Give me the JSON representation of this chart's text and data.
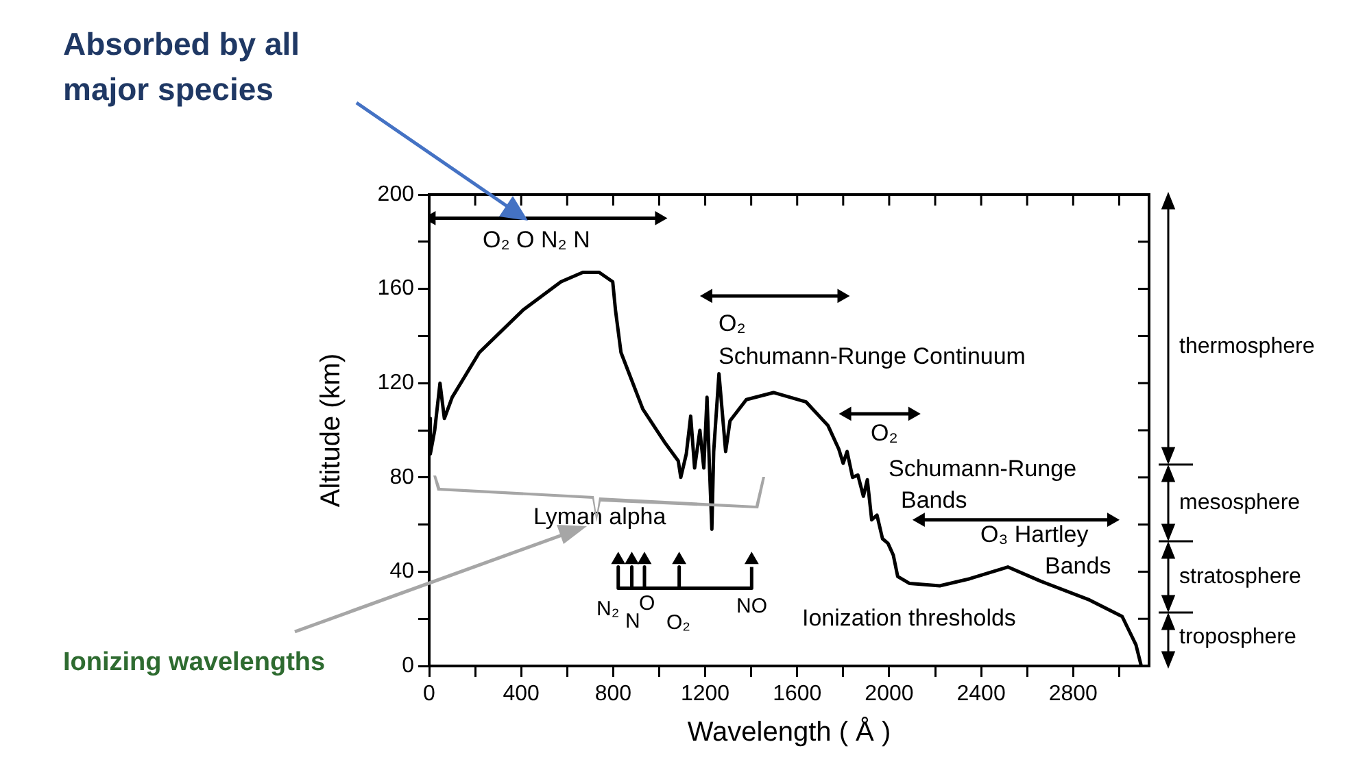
{
  "chart_data": {
    "type": "line",
    "xlabel": "Wavelength ( Å )",
    "ylabel": "Altitude (km)",
    "xlim": [
      0,
      3130
    ],
    "ylim": [
      0,
      200
    ],
    "xticks": [
      0,
      {
        "value": 200,
        "label": null
      },
      400,
      {
        "value": 600,
        "label": null
      },
      800,
      {
        "value": 1000,
        "label": null
      },
      1200,
      {
        "value": 1400,
        "label": null
      },
      1600,
      {
        "value": 1800,
        "label": null
      },
      2000,
      {
        "value": 2200,
        "label": null
      },
      2400,
      {
        "value": 2600,
        "label": null
      },
      2800,
      {
        "value": 3000,
        "label": null
      }
    ],
    "yticks": [
      0,
      {
        "value": 20,
        "label": null
      },
      40,
      {
        "value": 60,
        "label": null
      },
      80,
      {
        "value": 100,
        "label": null
      },
      120,
      {
        "value": 140,
        "label": null
      },
      160,
      {
        "value": 180,
        "label": null
      },
      200
    ],
    "grid": false,
    "legend": false,
    "series": [
      {
        "color": "#000000",
        "x": [
          0,
          5,
          24,
          47,
          66,
          100,
          218,
          408,
          573,
          668,
          739,
          798,
          810,
          834,
          929,
          1023,
          1083,
          1094,
          1118,
          1137,
          1154,
          1177,
          1194,
          1208,
          1218,
          1229,
          1237,
          1260,
          1289,
          1308,
          1379,
          1497,
          1639,
          1734,
          1781,
          1800,
          1817,
          1841,
          1864,
          1888,
          1905,
          1924,
          1947,
          1971,
          1995,
          2018,
          2037,
          2089,
          2220,
          2350,
          2516,
          2658,
          2871,
          3013,
          3073,
          3096
        ],
        "values": [
          105,
          90,
          100,
          120,
          105,
          114,
          133,
          151,
          163,
          167,
          167,
          163,
          151,
          133,
          109,
          95,
          87,
          80,
          90,
          106,
          84,
          100,
          84,
          114,
          86,
          58,
          91,
          124,
          91,
          104,
          113,
          116,
          112,
          102,
          92,
          86,
          91,
          80,
          81,
          72,
          79,
          62,
          64,
          54,
          52,
          47,
          38,
          35,
          34,
          37,
          42,
          36,
          28,
          21,
          9,
          0
        ]
      },
      {
        "color": "#000000",
        "marker": "triangle",
        "x": [
          10,
          1000
        ],
        "values": [
          190,
          190
        ]
      },
      {
        "color": "#000000",
        "marker": "triangle",
        "x": [
          1213,
          1793
        ],
        "values": [
          157,
          157
        ]
      },
      {
        "color": "#000000",
        "marker": "triangle",
        "x": [
          1817,
          2101
        ],
        "values": [
          107,
          107
        ]
      },
      {
        "color": "#000000",
        "marker": "triangle",
        "x": [
          2137,
          2966
        ],
        "values": [
          62,
          62
        ]
      },
      {
        "color": "#000000",
        "x": [
          822,
          822,
          881,
          881,
          881,
          936,
          936,
          936,
          1087,
          1087,
          1087,
          1402,
          1402
        ],
        "values": [
          42,
          33,
          33,
          42,
          33,
          33,
          42,
          33,
          33,
          42,
          33,
          33,
          42
        ]
      },
      {
        "type": "scatter",
        "color": "#000000",
        "marker": "triangle",
        "x": [
          822,
          881,
          936,
          1087,
          1402
        ],
        "values": [
          45,
          45,
          45,
          45,
          45
        ]
      }
    ],
    "annotations": [
      "Absorbed by all major species",
      "Ionizing wavelengths",
      "O₂ O N₂ N",
      "O₂",
      "Schumann-Runge Continuum",
      "O₂",
      "Schumann-Runge",
      "Bands",
      "O₃ Hartley",
      "Bands",
      "Lyman alpha",
      "Ionization thresholds",
      "N₂",
      "N",
      "O",
      "O₂",
      "NO",
      "thermosphere",
      "mesosphere",
      "stratosphere",
      "troposphere"
    ]
  }
}
